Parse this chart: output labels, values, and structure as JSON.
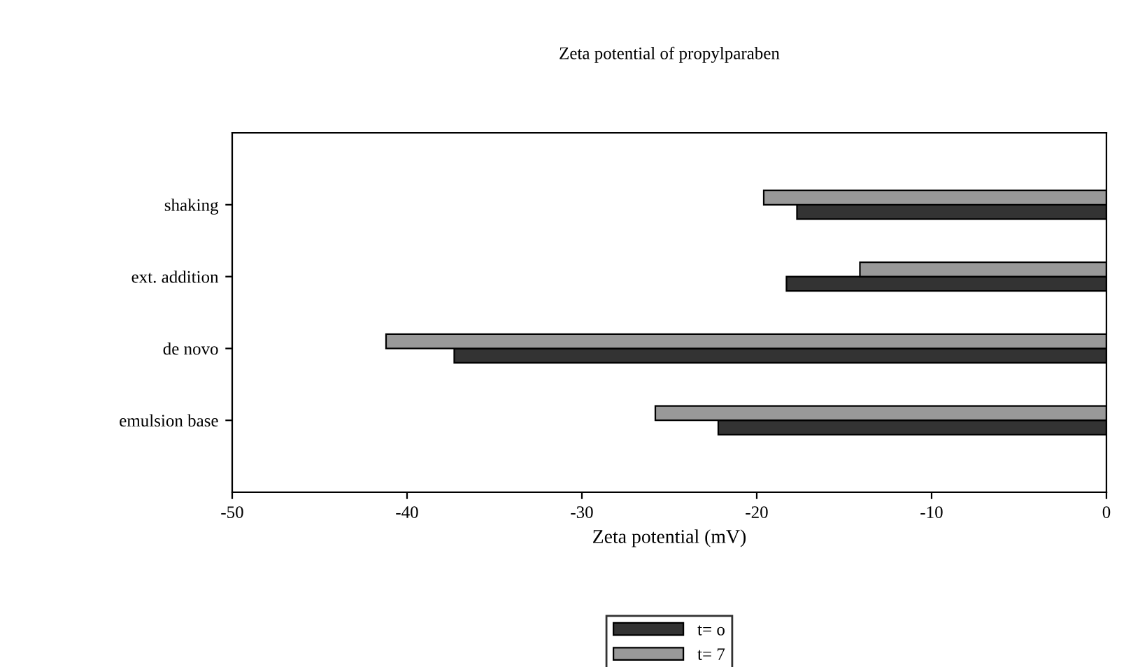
{
  "chart_data": {
    "type": "bar",
    "orientation": "horizontal",
    "title": "Zeta potential of propylparaben",
    "xlabel": "Zeta potential (mV)",
    "categories": [
      "shaking",
      "ext. addition",
      "de novo",
      "emulsion base"
    ],
    "series": [
      {
        "name": "t= o",
        "color": "#333333",
        "values": [
          -17.7,
          -18.3,
          -37.3,
          -22.2
        ]
      },
      {
        "name": "t= 7",
        "color": "#999999",
        "values": [
          -19.6,
          -14.1,
          -41.2,
          -25.8
        ]
      }
    ],
    "xlim": [
      -50,
      0
    ],
    "xticks": [
      -50,
      -40,
      -30,
      -20,
      -10,
      0
    ],
    "grid": false,
    "legend": "bottom"
  }
}
